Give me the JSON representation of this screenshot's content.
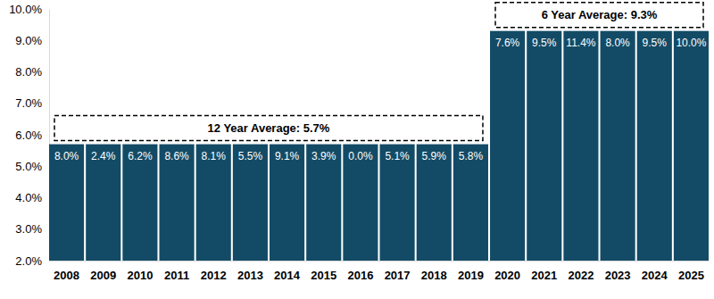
{
  "chart_data": {
    "type": "bar",
    "categories": [
      "2008",
      "2009",
      "2010",
      "2011",
      "2012",
      "2013",
      "2014",
      "2015",
      "2016",
      "2017",
      "2018",
      "2019",
      "2020",
      "2021",
      "2022",
      "2023",
      "2024",
      "2025"
    ],
    "values": [
      5.7,
      5.7,
      5.7,
      5.7,
      5.7,
      5.7,
      5.7,
      5.7,
      5.7,
      5.7,
      5.7,
      5.7,
      9.3,
      9.3,
      9.3,
      9.3,
      9.3,
      9.3
    ],
    "color": "#134b66",
    "ylim": [
      2,
      10
    ],
    "yticks": [
      {
        "value": 2,
        "label": "2.0%"
      },
      {
        "value": 3,
        "label": "3.0%"
      },
      {
        "value": 4,
        "label": "4.0%"
      },
      {
        "value": 5,
        "label": "5.0%"
      },
      {
        "value": 6,
        "label": "6.0%"
      },
      {
        "value": 7,
        "label": "7.0%"
      },
      {
        "value": 8,
        "label": "8.0%"
      },
      {
        "value": 9,
        "label": "9.0%"
      },
      {
        "value": 10,
        "label": "10.0%"
      }
    ],
    "grid": false,
    "annual_values": [
      8.0,
      2.4,
      6.2,
      8.6,
      8.1,
      5.5,
      9.1,
      3.9,
      0.0,
      5.1,
      5.9,
      5.8,
      7.6,
      9.5,
      11.4,
      8.0,
      9.5,
      10.0
    ],
    "annual_value_labels": [
      "8.0%",
      "2.4%",
      "6.2%",
      "8.6%",
      "8.1%",
      "5.5%",
      "9.1%",
      "3.9%",
      "0.0%",
      "5.1%",
      "5.9%",
      "5.8%",
      "7.6%",
      "9.5%",
      "11.4%",
      "8.0%",
      "9.5%",
      "10.0%"
    ],
    "annotations": [
      {
        "text": "12 Year Average: 5.7%",
        "value": 5.7,
        "from": "2008",
        "to": "2019"
      },
      {
        "text": "6 Year Average: 9.3%",
        "value": 9.3,
        "from": "2020",
        "to": "2025"
      }
    ]
  }
}
